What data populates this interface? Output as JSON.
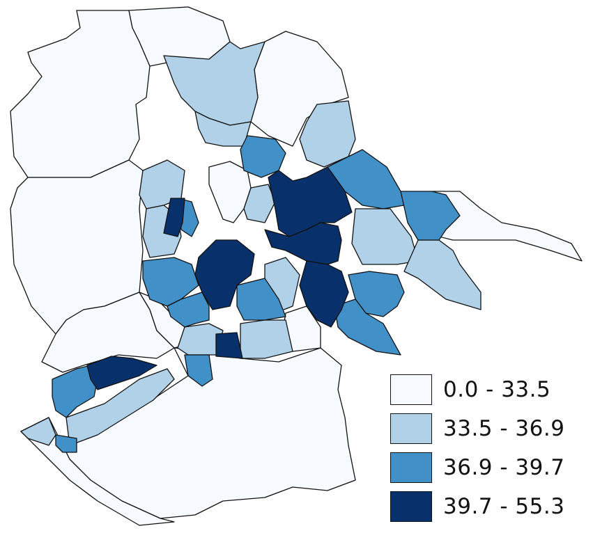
{
  "colors": {
    "class_1": "#f7fbff",
    "class_2": "#b1d1e8",
    "class_3": "#4190c8",
    "class_4": "#08306b",
    "border": "#111111"
  },
  "legend": {
    "items": [
      {
        "label": "0.0 - 33.5",
        "color": "#f7fbff"
      },
      {
        "label": "33.5 - 36.9",
        "color": "#b1d1e8"
      },
      {
        "label": "36.9 - 39.7",
        "color": "#4190c8"
      },
      {
        "label": "39.7 - 55.3",
        "color": "#08306b"
      }
    ]
  }
}
